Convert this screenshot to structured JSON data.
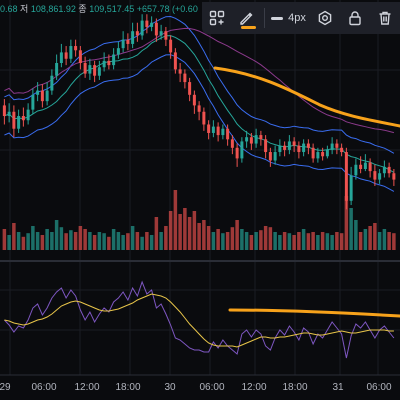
{
  "header": {
    "ohlc": [
      {
        "label": "",
        "value": "0.68"
      },
      {
        "label": "저",
        "value": "108,861.92"
      },
      {
        "label": "종",
        "value": "109,517.45"
      },
      {
        "label": "",
        "value": "+657.78 (+0.60"
      }
    ]
  },
  "toolbar": {
    "width_label": "4px",
    "stroke_color": "#f7a21b",
    "icons": [
      "shapes-grid-icon",
      "pencil-icon",
      "line-width-icon",
      "settings-icon",
      "lock-icon",
      "trash-icon"
    ]
  },
  "time_axis": {
    "labels": [
      "29",
      "06:00",
      "12:00",
      "18:00",
      "30",
      "06:00",
      "12:00",
      "18:00",
      "31",
      "06:00"
    ]
  },
  "colors": {
    "up": "#26a69a",
    "down": "#ef5350",
    "background": "#0a0b0e",
    "drawing": "#f7a21b",
    "rsi": "#7e57c2",
    "rsi_ma": "#e8c54a",
    "band": "#2962ff"
  },
  "chart_data": {
    "type": "candlestick",
    "candles": [
      [
        0.55,
        0.5,
        0.58,
        0.46
      ],
      [
        0.5,
        0.52,
        0.56,
        0.47
      ],
      [
        0.52,
        0.44,
        0.55,
        0.4
      ],
      [
        0.44,
        0.5,
        0.53,
        0.42
      ],
      [
        0.5,
        0.48,
        0.54,
        0.45
      ],
      [
        0.48,
        0.53,
        0.56,
        0.46
      ],
      [
        0.53,
        0.6,
        0.63,
        0.51
      ],
      [
        0.6,
        0.62,
        0.66,
        0.57
      ],
      [
        0.62,
        0.57,
        0.65,
        0.54
      ],
      [
        0.57,
        0.62,
        0.66,
        0.55
      ],
      [
        0.62,
        0.69,
        0.72,
        0.6
      ],
      [
        0.69,
        0.75,
        0.79,
        0.67
      ],
      [
        0.75,
        0.8,
        0.84,
        0.73
      ],
      [
        0.8,
        0.77,
        0.83,
        0.74
      ],
      [
        0.77,
        0.83,
        0.86,
        0.75
      ],
      [
        0.83,
        0.81,
        0.86,
        0.78
      ],
      [
        0.81,
        0.75,
        0.83,
        0.72
      ],
      [
        0.75,
        0.7,
        0.78,
        0.68
      ],
      [
        0.7,
        0.74,
        0.77,
        0.67
      ],
      [
        0.74,
        0.69,
        0.76,
        0.66
      ],
      [
        0.69,
        0.73,
        0.76,
        0.67
      ],
      [
        0.73,
        0.76,
        0.8,
        0.71
      ],
      [
        0.76,
        0.74,
        0.79,
        0.72
      ],
      [
        0.74,
        0.79,
        0.82,
        0.72
      ],
      [
        0.79,
        0.82,
        0.85,
        0.77
      ],
      [
        0.82,
        0.86,
        0.9,
        0.8
      ],
      [
        0.86,
        0.84,
        0.89,
        0.81
      ],
      [
        0.84,
        0.9,
        0.94,
        0.82
      ],
      [
        0.9,
        0.88,
        0.94,
        0.85
      ],
      [
        0.88,
        0.95,
        0.98,
        0.86
      ],
      [
        0.95,
        0.92,
        0.98,
        0.89
      ],
      [
        0.92,
        0.94,
        0.97,
        0.9
      ],
      [
        0.94,
        0.88,
        0.96,
        0.85
      ],
      [
        0.88,
        0.9,
        0.93,
        0.86
      ],
      [
        0.9,
        0.86,
        0.92,
        0.83
      ],
      [
        0.86,
        0.8,
        0.88,
        0.77
      ],
      [
        0.8,
        0.72,
        0.82,
        0.7
      ],
      [
        0.72,
        0.7,
        0.75,
        0.66
      ],
      [
        0.7,
        0.66,
        0.72,
        0.63
      ],
      [
        0.66,
        0.6,
        0.68,
        0.57
      ],
      [
        0.6,
        0.55,
        0.62,
        0.51
      ],
      [
        0.55,
        0.52,
        0.57,
        0.48
      ],
      [
        0.52,
        0.46,
        0.54,
        0.43
      ],
      [
        0.46,
        0.42,
        0.48,
        0.39
      ],
      [
        0.42,
        0.45,
        0.48,
        0.4
      ],
      [
        0.45,
        0.41,
        0.47,
        0.38
      ],
      [
        0.41,
        0.44,
        0.46,
        0.39
      ],
      [
        0.44,
        0.39,
        0.46,
        0.36
      ],
      [
        0.39,
        0.35,
        0.41,
        0.32
      ],
      [
        0.35,
        0.3,
        0.37,
        0.26
      ],
      [
        0.3,
        0.38,
        0.4,
        0.28
      ],
      [
        0.38,
        0.4,
        0.43,
        0.35
      ],
      [
        0.4,
        0.37,
        0.42,
        0.34
      ],
      [
        0.37,
        0.41,
        0.44,
        0.35
      ],
      [
        0.41,
        0.39,
        0.43,
        0.36
      ],
      [
        0.39,
        0.33,
        0.41,
        0.3
      ],
      [
        0.33,
        0.29,
        0.35,
        0.26
      ],
      [
        0.29,
        0.33,
        0.36,
        0.27
      ],
      [
        0.33,
        0.36,
        0.39,
        0.31
      ],
      [
        0.36,
        0.34,
        0.38,
        0.31
      ],
      [
        0.34,
        0.38,
        0.41,
        0.32
      ],
      [
        0.38,
        0.36,
        0.4,
        0.33
      ],
      [
        0.36,
        0.33,
        0.38,
        0.3
      ],
      [
        0.33,
        0.37,
        0.39,
        0.31
      ],
      [
        0.37,
        0.35,
        0.39,
        0.32
      ],
      [
        0.35,
        0.3,
        0.37,
        0.28
      ],
      [
        0.3,
        0.33,
        0.35,
        0.28
      ],
      [
        0.33,
        0.31,
        0.35,
        0.29
      ],
      [
        0.31,
        0.34,
        0.36,
        0.3
      ],
      [
        0.34,
        0.37,
        0.4,
        0.32
      ],
      [
        0.37,
        0.35,
        0.39,
        0.32
      ],
      [
        0.35,
        0.33,
        0.37,
        0.31
      ],
      [
        0.33,
        0.1,
        0.35,
        0.06
      ],
      [
        0.1,
        0.22,
        0.26,
        0.08
      ],
      [
        0.22,
        0.27,
        0.3,
        0.2
      ],
      [
        0.27,
        0.25,
        0.31,
        0.23
      ],
      [
        0.25,
        0.28,
        0.32,
        0.24
      ],
      [
        0.28,
        0.24,
        0.3,
        0.21
      ],
      [
        0.24,
        0.2,
        0.27,
        0.17
      ],
      [
        0.2,
        0.23,
        0.25,
        0.18
      ],
      [
        0.23,
        0.26,
        0.29,
        0.21
      ],
      [
        0.26,
        0.23,
        0.28,
        0.21
      ],
      [
        0.23,
        0.2,
        0.25,
        0.17
      ]
    ],
    "volume": [
      0.35,
      0.25,
      0.45,
      0.3,
      0.22,
      0.28,
      0.4,
      0.3,
      0.25,
      0.35,
      0.3,
      0.5,
      0.38,
      0.28,
      0.33,
      0.3,
      0.4,
      0.35,
      0.3,
      0.25,
      0.3,
      0.28,
      0.22,
      0.35,
      0.3,
      0.25,
      0.28,
      0.4,
      0.3,
      0.22,
      0.3,
      0.25,
      0.55,
      0.3,
      0.4,
      0.65,
      1.0,
      0.6,
      0.7,
      0.55,
      0.65,
      0.45,
      0.5,
      0.4,
      0.3,
      0.35,
      0.28,
      0.3,
      0.38,
      0.5,
      0.35,
      0.3,
      0.25,
      0.3,
      0.33,
      0.4,
      0.38,
      0.3,
      0.25,
      0.3,
      0.28,
      0.25,
      0.3,
      0.35,
      0.28,
      0.3,
      0.25,
      0.3,
      0.28,
      0.25,
      0.3,
      0.28,
      0.9,
      0.7,
      0.5,
      0.3,
      0.35,
      0.4,
      0.45,
      0.3,
      0.35,
      0.3,
      0.28
    ],
    "rsi": [
      0.5,
      0.45,
      0.38,
      0.44,
      0.42,
      0.5,
      0.62,
      0.66,
      0.55,
      0.62,
      0.72,
      0.78,
      0.82,
      0.72,
      0.8,
      0.74,
      0.6,
      0.5,
      0.58,
      0.48,
      0.56,
      0.62,
      0.58,
      0.68,
      0.72,
      0.78,
      0.7,
      0.82,
      0.74,
      0.88,
      0.76,
      0.8,
      0.62,
      0.66,
      0.56,
      0.45,
      0.32,
      0.3,
      0.26,
      0.22,
      0.2,
      0.2,
      0.18,
      0.18,
      0.28,
      0.22,
      0.3,
      0.24,
      0.2,
      0.16,
      0.36,
      0.4,
      0.33,
      0.4,
      0.36,
      0.24,
      0.2,
      0.32,
      0.4,
      0.35,
      0.44,
      0.38,
      0.3,
      0.42,
      0.38,
      0.26,
      0.36,
      0.32,
      0.4,
      0.48,
      0.42,
      0.36,
      0.12,
      0.34,
      0.46,
      0.42,
      0.48,
      0.4,
      0.32,
      0.4,
      0.44,
      0.38,
      0.32
    ],
    "rsi_ma": [
      0.5,
      0.49,
      0.47,
      0.46,
      0.45,
      0.46,
      0.48,
      0.5,
      0.51,
      0.53,
      0.56,
      0.6,
      0.64,
      0.66,
      0.68,
      0.69,
      0.68,
      0.66,
      0.64,
      0.62,
      0.6,
      0.59,
      0.59,
      0.6,
      0.61,
      0.63,
      0.65,
      0.67,
      0.7,
      0.72,
      0.74,
      0.76,
      0.75,
      0.74,
      0.72,
      0.68,
      0.63,
      0.58,
      0.52,
      0.46,
      0.41,
      0.36,
      0.31,
      0.27,
      0.25,
      0.24,
      0.24,
      0.24,
      0.24,
      0.23,
      0.25,
      0.27,
      0.29,
      0.31,
      0.33,
      0.33,
      0.32,
      0.32,
      0.33,
      0.33,
      0.34,
      0.35,
      0.36,
      0.37,
      0.37,
      0.36,
      0.35,
      0.35,
      0.36,
      0.37,
      0.38,
      0.39,
      0.38,
      0.37,
      0.37,
      0.38,
      0.39,
      0.4,
      0.4,
      0.4,
      0.4,
      0.39,
      0.39
    ]
  }
}
